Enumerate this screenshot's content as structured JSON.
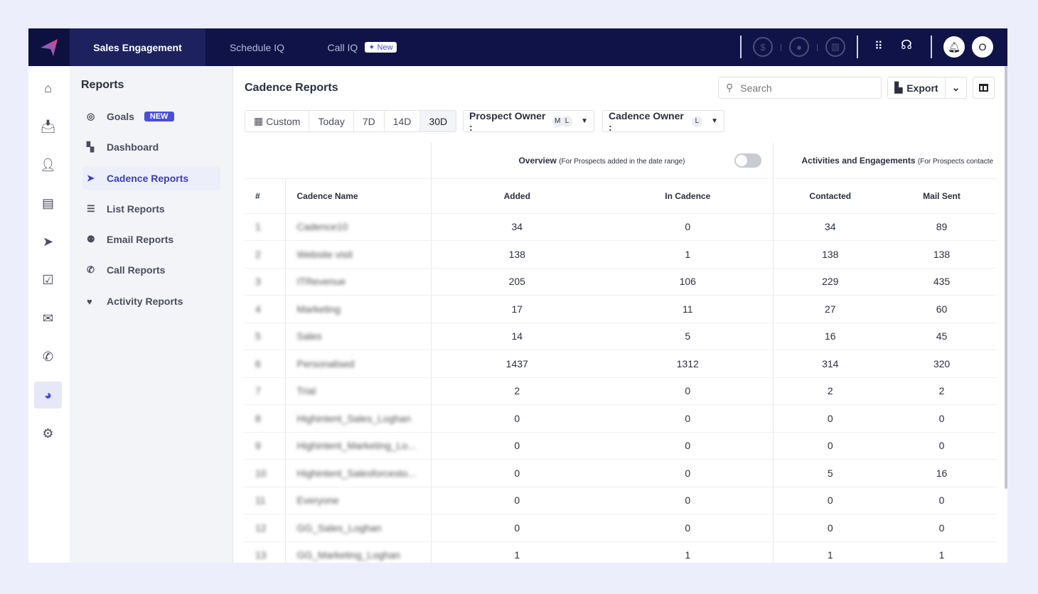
{
  "topbar": {
    "tabs": [
      {
        "label": "Sales Engagement",
        "active": true
      },
      {
        "label": "Schedule IQ"
      },
      {
        "label": "Call IQ",
        "badge": "New"
      }
    ],
    "avatar": "O"
  },
  "sidebar": {
    "title": "Reports",
    "items": [
      {
        "label": "Goals",
        "badge": "NEW",
        "icon": "target-icon"
      },
      {
        "label": "Dashboard",
        "icon": "dashboard-icon"
      },
      {
        "label": "Cadence Reports",
        "icon": "paper-plane-icon",
        "active": true
      },
      {
        "label": "List Reports",
        "icon": "list-icon"
      },
      {
        "label": "Email Reports",
        "icon": "users-icon"
      },
      {
        "label": "Call Reports",
        "icon": "phone-icon"
      },
      {
        "label": "Activity Reports",
        "icon": "heartbeat-icon"
      }
    ]
  },
  "main": {
    "title": "Cadence Reports",
    "search_placeholder": "Search",
    "export_label": "Export",
    "ranges": [
      "Custom",
      "Today",
      "7D",
      "14D",
      "30D"
    ],
    "selected_range": "30D",
    "prospect_owner": {
      "label": "Prospect Owner :",
      "avatars": [
        "M",
        "L"
      ]
    },
    "cadence_owner": {
      "label": "Cadence Owner :",
      "avatars": [
        "L"
      ]
    }
  },
  "table": {
    "group_overview": "Overview",
    "group_overview_note": "(For Prospects added in the date range)",
    "group_activities": "Activities and Engagements",
    "group_activities_note": "(For Prospects contacte",
    "headers": [
      "#",
      "Cadence Name",
      "Added",
      "In Cadence",
      "Contacted",
      "Mail Sent"
    ],
    "rows": [
      [
        "1",
        "Cadence10",
        "34",
        "0",
        "34",
        "89"
      ],
      [
        "2",
        "Website visit",
        "138",
        "1",
        "138",
        "138"
      ],
      [
        "3",
        "ITRevenue",
        "205",
        "106",
        "229",
        "435"
      ],
      [
        "4",
        "Marketing",
        "17",
        "11",
        "27",
        "60"
      ],
      [
        "5",
        "Sales",
        "14",
        "5",
        "16",
        "45"
      ],
      [
        "6",
        "Personalised",
        "1437",
        "1312",
        "314",
        "320"
      ],
      [
        "7",
        "Trial",
        "2",
        "0",
        "2",
        "2"
      ],
      [
        "8",
        "Highintent_Sales_Loghan",
        "0",
        "0",
        "0",
        "0"
      ],
      [
        "9",
        "Highintent_Marketing_Lo...",
        "0",
        "0",
        "0",
        "0"
      ],
      [
        "10",
        "Highintent_Salesforcesto...",
        "0",
        "0",
        "5",
        "16"
      ],
      [
        "11",
        "Everyone",
        "0",
        "0",
        "0",
        "0"
      ],
      [
        "12",
        "GG_Sales_Loghan",
        "0",
        "0",
        "0",
        "0"
      ],
      [
        "13",
        "GG_Marketing_Loghan",
        "1",
        "1",
        "1",
        "1"
      ]
    ]
  }
}
